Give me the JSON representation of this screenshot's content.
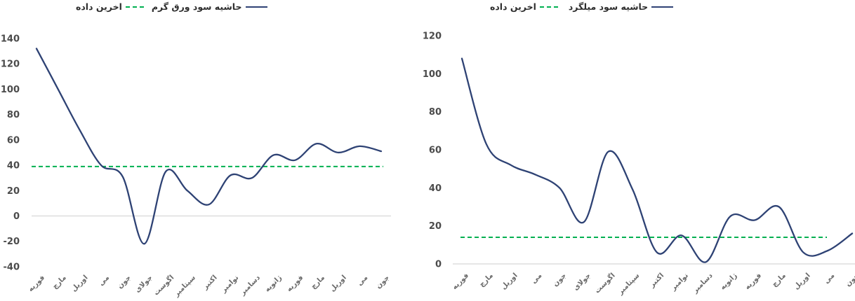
{
  "colors": {
    "series_navy": "#2e4274",
    "reference_green": "#00B050",
    "zero_gridline": "#dedede",
    "axis_text": "#4b4b4b",
    "category_text": "#6a6a6a"
  },
  "chart_data": [
    {
      "type": "line",
      "title": "",
      "categories": [
        "فوریه",
        "مارچ",
        "اوریل",
        "می",
        "جون",
        "جولای",
        "اگوست",
        "سپتامبر",
        "اکتبر",
        "نوامبر",
        "دسامبر",
        "ژانویه",
        "فوریه",
        "مارچ",
        "اوریل",
        "می",
        "جون"
      ],
      "series": [
        {
          "name": "حاشیه سود ورق گرم",
          "style": "solid",
          "values": [
            132,
            100,
            68,
            40,
            31,
            -22,
            35,
            20,
            9,
            32,
            30,
            48,
            44,
            57,
            50,
            55,
            51
          ]
        }
      ],
      "reference_line": {
        "name": "اخرین داده",
        "style": "dashed",
        "value": 39
      },
      "ylim": [
        -40,
        140
      ],
      "yticks": [
        140,
        120,
        100,
        80,
        60,
        40,
        20,
        0,
        -20,
        -40
      ],
      "grid": "zero-line-only",
      "legend_position": "top",
      "smoothed": true
    },
    {
      "type": "line",
      "title": "",
      "categories": [
        "فوریه",
        "مارچ",
        "اوریل",
        "می",
        "جون",
        "جولای",
        "اگوست",
        "سپتامبر",
        "اکتبر",
        "نوامبر",
        "دسامبر",
        "ژانویه",
        "فوریه",
        "مارچ",
        "اوریل",
        "می",
        "جون"
      ],
      "series": [
        {
          "name": "حاشیه سود میلگرد",
          "style": "solid",
          "values": [
            108,
            63,
            52,
            47,
            40,
            22,
            59,
            39,
            6,
            15,
            1,
            25,
            23,
            30,
            6,
            7,
            16
          ]
        }
      ],
      "reference_line": {
        "name": "اخرین داده",
        "style": "dashed",
        "value": 14
      },
      "ylim": [
        0,
        120
      ],
      "yticks": [
        120,
        100,
        80,
        60,
        40,
        20,
        0
      ],
      "grid": "zero-line-only",
      "legend_position": "top",
      "smoothed": true
    }
  ]
}
